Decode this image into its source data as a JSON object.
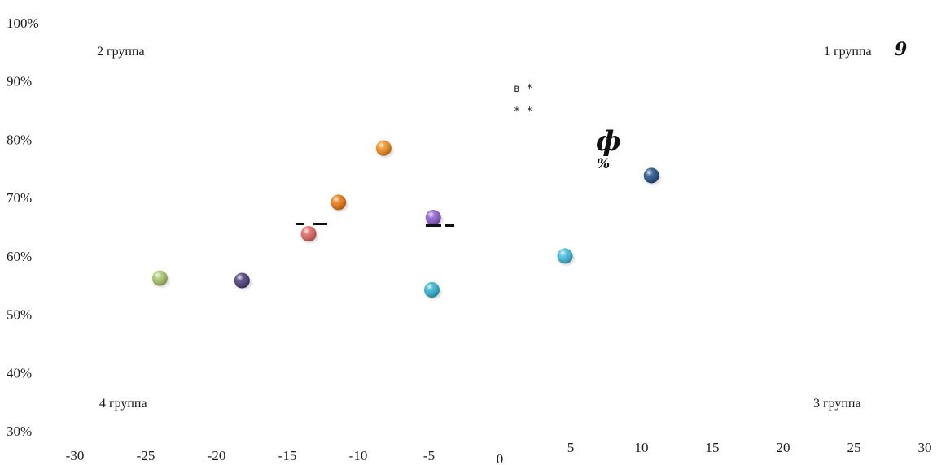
{
  "chart_data": {
    "type": "scatter",
    "xlim": [
      -30,
      30
    ],
    "ylim": [
      0.3,
      1.0
    ],
    "x_ticks": [
      "-30",
      "-25",
      "-20",
      "-15",
      "-10",
      "-5",
      "0",
      "5",
      "10",
      "15",
      "20",
      "25",
      "30"
    ],
    "y_ticks": [
      "30%",
      "40%",
      "50%",
      "60%",
      "70%",
      "80%",
      "90%",
      "100%"
    ],
    "grid": false,
    "points": [
      {
        "x": -24.0,
        "y": 0.562,
        "color": "#a9c46a"
      },
      {
        "x": -18.2,
        "y": 0.558,
        "color": "#4b3a78"
      },
      {
        "x": -13.5,
        "y": 0.638,
        "color": "#e0625f"
      },
      {
        "x": -11.4,
        "y": 0.692,
        "color": "#e8760e"
      },
      {
        "x": -8.2,
        "y": 0.785,
        "color": "#ef8a18"
      },
      {
        "x": -4.7,
        "y": 0.666,
        "color": "#8a5ccc"
      },
      {
        "x": -4.8,
        "y": 0.542,
        "color": "#2fb2cf"
      },
      {
        "x": 4.6,
        "y": 0.6,
        "color": "#3dbad9"
      },
      {
        "x": 10.7,
        "y": 0.738,
        "color": "#1f4f86"
      }
    ],
    "quadrant_labels": {
      "q1": "1 группа",
      "q2": "2 группа",
      "q3": "3 группа",
      "q4": "4 группа"
    },
    "annotations": {
      "q1_mark": "9",
      "phi": "ф",
      "percent": "%",
      "line1": "в *",
      "line2": "* *"
    }
  }
}
